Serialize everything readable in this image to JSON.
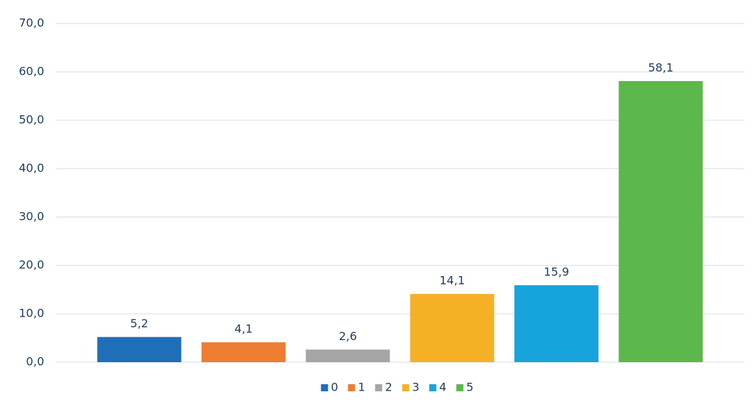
{
  "chart_data": {
    "type": "bar",
    "categories": [
      null
    ],
    "series": [
      {
        "name": "0",
        "color": "#1f6fb8",
        "values": [
          5.2
        ],
        "value_labels": [
          "5,2"
        ]
      },
      {
        "name": "1",
        "color": "#ed7d31",
        "values": [
          4.1
        ],
        "value_labels": [
          "4,1"
        ]
      },
      {
        "name": "2",
        "color": "#a5a5a5",
        "values": [
          2.6
        ],
        "value_labels": [
          "2,6"
        ]
      },
      {
        "name": "3",
        "color": "#f5b026",
        "values": [
          14.1
        ],
        "value_labels": [
          "14,1"
        ]
      },
      {
        "name": "4",
        "color": "#17a3dc",
        "values": [
          15.9
        ],
        "value_labels": [
          "15,9"
        ]
      },
      {
        "name": "5",
        "color": "#5cb84a",
        "values": [
          58.1
        ],
        "value_labels": [
          "58,1"
        ]
      }
    ],
    "ylim": [
      0,
      70
    ],
    "yticks": [
      {
        "value": 0,
        "label": "0,0"
      },
      {
        "value": 10,
        "label": "10,0"
      },
      {
        "value": 20,
        "label": "20,0"
      },
      {
        "value": 30,
        "label": "30,0"
      },
      {
        "value": 40,
        "label": "40,0"
      },
      {
        "value": 50,
        "label": "50,0"
      },
      {
        "value": 60,
        "label": "60,0"
      },
      {
        "value": 70,
        "label": "70,0"
      }
    ],
    "grid": true,
    "legend": "bottom"
  }
}
